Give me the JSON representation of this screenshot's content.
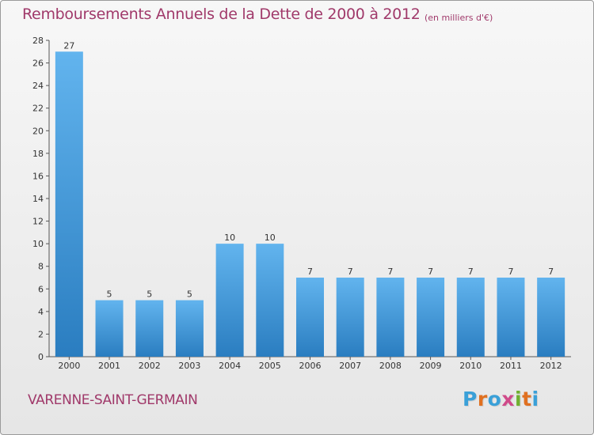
{
  "header": {
    "title": "Remboursements Annuels de la Dette de 2000 à 2012",
    "subtitle": "(en milliers d'€)"
  },
  "footer": {
    "commune": "VARENNE-SAINT-GERMAIN",
    "brand": "Proxiti",
    "brand_letters": [
      "P",
      "r",
      "o",
      "x",
      "i",
      "t",
      "i"
    ],
    "brand_colors": [
      "#3aa0d8",
      "#e07020",
      "#3aa0d8",
      "#d04a8a",
      "#70b030",
      "#e07020",
      "#3aa0d8"
    ]
  },
  "colors": {
    "accent": "#a0396a",
    "bar_light": "#62b4ee",
    "bar_dark": "#2a7dc0",
    "axis": "#555555"
  },
  "chart_data": {
    "type": "bar",
    "title": "Remboursements Annuels de la Dette de 2000 à 2012",
    "subtitle": "(en milliers d'€)",
    "categories": [
      "2000",
      "2001",
      "2002",
      "2003",
      "2004",
      "2005",
      "2006",
      "2007",
      "2008",
      "2009",
      "2010",
      "2011",
      "2012"
    ],
    "values": [
      27,
      5,
      5,
      5,
      10,
      10,
      7,
      7,
      7,
      7,
      7,
      7,
      7
    ],
    "data_labels": [
      "27",
      "5",
      "5",
      "5",
      "10",
      "10",
      "7",
      "7",
      "7",
      "7",
      "7",
      "7",
      "7"
    ],
    "yticks": [
      "0",
      "2",
      "4",
      "6",
      "8",
      "10",
      "12",
      "14",
      "16",
      "18",
      "20",
      "22",
      "24",
      "26",
      "28"
    ],
    "ylim": [
      0,
      28
    ],
    "xlabel": "",
    "ylabel": "",
    "grid": false,
    "legend": "none"
  }
}
